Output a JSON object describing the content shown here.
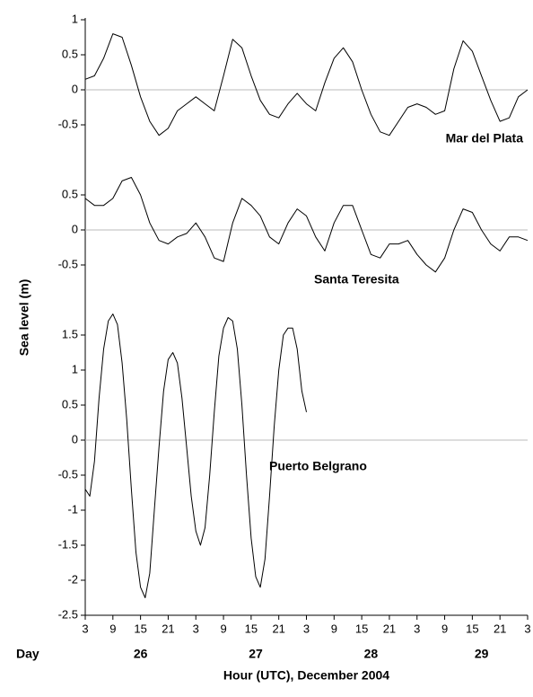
{
  "chart_data": [
    {
      "type": "line",
      "name": "Mar del Plata",
      "color": "#000000",
      "xlim": [
        3,
        99
      ],
      "ylim": [
        -1,
        1
      ],
      "yticks": [
        1,
        0.5,
        0,
        -0.5
      ],
      "zero_line": true,
      "x": [
        3,
        5,
        7,
        9,
        11,
        13,
        15,
        17,
        19,
        21,
        23,
        25,
        27,
        29,
        31,
        33,
        35,
        37,
        39,
        41,
        43,
        45,
        47,
        49,
        51,
        53,
        55,
        57,
        59,
        61,
        63,
        65,
        67,
        69,
        71,
        73,
        75,
        77,
        79,
        81,
        83,
        85,
        87,
        89,
        91,
        93,
        95,
        97,
        99
      ],
      "values": [
        0.15,
        0.2,
        0.45,
        0.8,
        0.75,
        0.35,
        -0.1,
        -0.45,
        -0.65,
        -0.55,
        -0.3,
        -0.2,
        -0.1,
        -0.2,
        -0.3,
        0.2,
        0.72,
        0.6,
        0.2,
        -0.15,
        -0.35,
        -0.4,
        -0.2,
        -0.05,
        -0.2,
        -0.3,
        0.1,
        0.45,
        0.6,
        0.4,
        0.0,
        -0.35,
        -0.6,
        -0.65,
        -0.45,
        -0.25,
        -0.2,
        -0.25,
        -0.35,
        -0.3,
        0.3,
        0.7,
        0.55,
        0.2,
        -0.15,
        -0.45,
        -0.4,
        -0.1,
        0.0
      ]
    },
    {
      "type": "line",
      "name": "Santa Teresita",
      "color": "#000000",
      "ylabel": "Sea level (m)",
      "xlim": [
        3,
        99
      ],
      "ylim": [
        -1,
        1
      ],
      "yticks": [
        0.5,
        0,
        -0.5
      ],
      "zero_line": true,
      "x": [
        3,
        5,
        7,
        9,
        11,
        13,
        15,
        17,
        19,
        21,
        23,
        25,
        27,
        29,
        31,
        33,
        35,
        37,
        39,
        41,
        43,
        45,
        47,
        49,
        51,
        53,
        55,
        57,
        59,
        61,
        63,
        65,
        67,
        69,
        71,
        73,
        75,
        77,
        79,
        81,
        83,
        85,
        87,
        89,
        91,
        93,
        95,
        97,
        99
      ],
      "values": [
        0.45,
        0.35,
        0.35,
        0.45,
        0.7,
        0.75,
        0.5,
        0.1,
        -0.15,
        -0.2,
        -0.1,
        -0.05,
        0.1,
        -0.1,
        -0.4,
        -0.45,
        0.1,
        0.45,
        0.35,
        0.2,
        -0.1,
        -0.2,
        0.1,
        0.3,
        0.2,
        -0.1,
        -0.3,
        0.1,
        0.35,
        0.35,
        0.0,
        -0.35,
        -0.4,
        -0.2,
        -0.2,
        -0.15,
        -0.35,
        -0.5,
        -0.6,
        -0.4,
        0.0,
        0.3,
        0.25,
        0.0,
        -0.2,
        -0.3,
        -0.1,
        -0.1,
        -0.15
      ]
    },
    {
      "type": "line",
      "name": "Puerto Belgrano",
      "color": "#000000",
      "xlim": [
        3,
        99
      ],
      "ylim": [
        -2.5,
        2
      ],
      "yticks": [
        1.5,
        1,
        0.5,
        0,
        -0.5,
        -1,
        -1.5,
        -2,
        -2.5
      ],
      "zero_line": true,
      "xticks": [
        3,
        9,
        15,
        21,
        {
          "value": 27,
          "label": "3"
        },
        {
          "value": 33,
          "label": "9"
        },
        {
          "value": 39,
          "label": "15"
        },
        {
          "value": 45,
          "label": "21"
        },
        {
          "value": 51,
          "label": "3"
        },
        {
          "value": 57,
          "label": "9"
        },
        {
          "value": 63,
          "label": "15"
        },
        {
          "value": 69,
          "label": "21"
        },
        {
          "value": 75,
          "label": "3"
        },
        {
          "value": 81,
          "label": "9"
        },
        {
          "value": 87,
          "label": "15"
        },
        {
          "value": 93,
          "label": "21"
        },
        {
          "value": 99,
          "label": "3"
        }
      ],
      "day_row_label": "Day",
      "days": [
        {
          "value": 15,
          "label": "26"
        },
        {
          "value": 40,
          "label": "27"
        },
        {
          "value": 65,
          "label": "28"
        },
        {
          "value": 89,
          "label": "29"
        }
      ],
      "xlabel": "Hour (UTC), December 2004",
      "x": [
        3,
        4,
        5,
        6,
        7,
        8,
        9,
        10,
        11,
        12,
        13,
        14,
        15,
        16,
        17,
        18,
        19,
        20,
        21,
        22,
        23,
        24,
        25,
        26,
        27,
        28,
        29,
        30,
        31,
        32,
        33,
        34,
        35,
        36,
        37,
        38,
        39,
        40,
        41,
        42,
        43,
        44,
        45,
        46,
        47,
        48,
        49,
        50,
        51
      ],
      "values": [
        -0.7,
        -0.8,
        -0.3,
        0.6,
        1.3,
        1.7,
        1.8,
        1.65,
        1.1,
        0.3,
        -0.7,
        -1.6,
        -2.1,
        -2.25,
        -1.9,
        -1.0,
        -0.1,
        0.7,
        1.15,
        1.25,
        1.1,
        0.6,
        -0.1,
        -0.8,
        -1.3,
        -1.5,
        -1.25,
        -0.5,
        0.4,
        1.2,
        1.6,
        1.75,
        1.7,
        1.3,
        0.5,
        -0.5,
        -1.4,
        -1.95,
        -2.1,
        -1.7,
        -0.8,
        0.2,
        1.0,
        1.5,
        1.6,
        1.6,
        1.3,
        0.7,
        0.4
      ]
    }
  ]
}
